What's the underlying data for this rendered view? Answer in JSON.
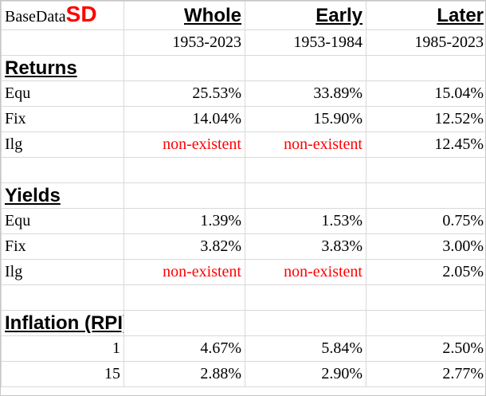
{
  "brand": {
    "base": "BaseData",
    "sd": "SD"
  },
  "columns": [
    {
      "title": "Whole",
      "range": "1953-2023"
    },
    {
      "title": "Early",
      "range": "1953-1984"
    },
    {
      "title": "Later",
      "range": "1985-2023"
    }
  ],
  "sections": {
    "returns": {
      "title": "Returns",
      "rows": [
        {
          "label": "Equ",
          "values": [
            "25.53%",
            "33.89%",
            "15.04%"
          ]
        },
        {
          "label": "Fix",
          "values": [
            "14.04%",
            "15.90%",
            "12.52%"
          ]
        },
        {
          "label": "Ilg",
          "values": [
            "non-existent",
            "non-existent",
            "12.45%"
          ]
        }
      ]
    },
    "yields": {
      "title": "Yields",
      "rows": [
        {
          "label": "Equ",
          "values": [
            "1.39%",
            "1.53%",
            "0.75%"
          ]
        },
        {
          "label": "Fix",
          "values": [
            "3.82%",
            "3.83%",
            "3.00%"
          ]
        },
        {
          "label": "Ilg",
          "values": [
            "non-existent",
            "non-existent",
            "2.05%"
          ]
        }
      ]
    },
    "inflation": {
      "title": "Inflation (RPI)",
      "rows": [
        {
          "label": "1",
          "values": [
            "4.67%",
            "5.84%",
            "2.50%"
          ]
        },
        {
          "label": "15",
          "values": [
            "2.88%",
            "2.90%",
            "2.77%"
          ]
        }
      ]
    }
  },
  "colors": {
    "brand_accent": "#ff0000",
    "missing_text": "#ff0000",
    "gridline": "#d9d9d9"
  }
}
